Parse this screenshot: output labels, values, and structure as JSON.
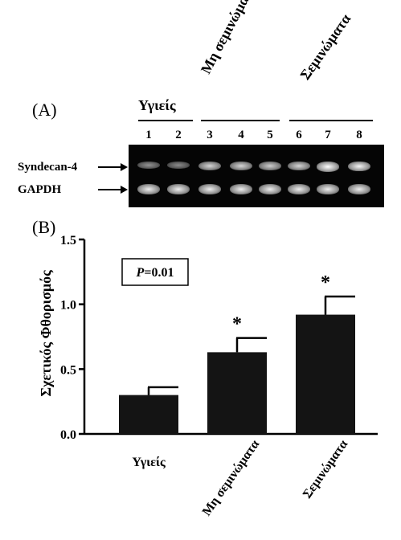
{
  "panel_a": {
    "label": "(A)",
    "groups": [
      {
        "name": "Υγιείς"
      },
      {
        "name": "Μη σεμινώματα"
      },
      {
        "name": "Σεμινώματα"
      }
    ],
    "lanes": [
      "1",
      "2",
      "3",
      "4",
      "5",
      "6",
      "7",
      "8"
    ],
    "rows": [
      "Syndecan-4",
      "GAPDH"
    ],
    "band_intensity": {
      "syndecan4": [
        0.35,
        0.3,
        0.75,
        0.75,
        0.7,
        0.75,
        1.0,
        0.95
      ],
      "gapdh": [
        0.9,
        0.9,
        0.9,
        0.9,
        0.9,
        0.9,
        0.9,
        0.9
      ]
    }
  },
  "panel_b": {
    "label": "(B)",
    "p_value_prefix": "P",
    "p_value_suffix": "=0.01",
    "significance_marker": "*"
  },
  "chart_data": {
    "type": "bar",
    "categories": [
      "Υγιείς",
      "Μη σεμινώματα",
      "Σεμινώματα"
    ],
    "values": [
      0.3,
      0.63,
      0.92
    ],
    "errors": [
      0.06,
      0.11,
      0.14
    ],
    "significant": [
      false,
      true,
      true
    ],
    "ylabel": "Σχετικός Φθορισμός",
    "xlabel": "",
    "ylim": [
      0,
      1.5
    ],
    "yticks": [
      "0.0",
      "0.5",
      "1.0",
      "1.5"
    ],
    "bar_color": "#141414",
    "grid": false
  }
}
